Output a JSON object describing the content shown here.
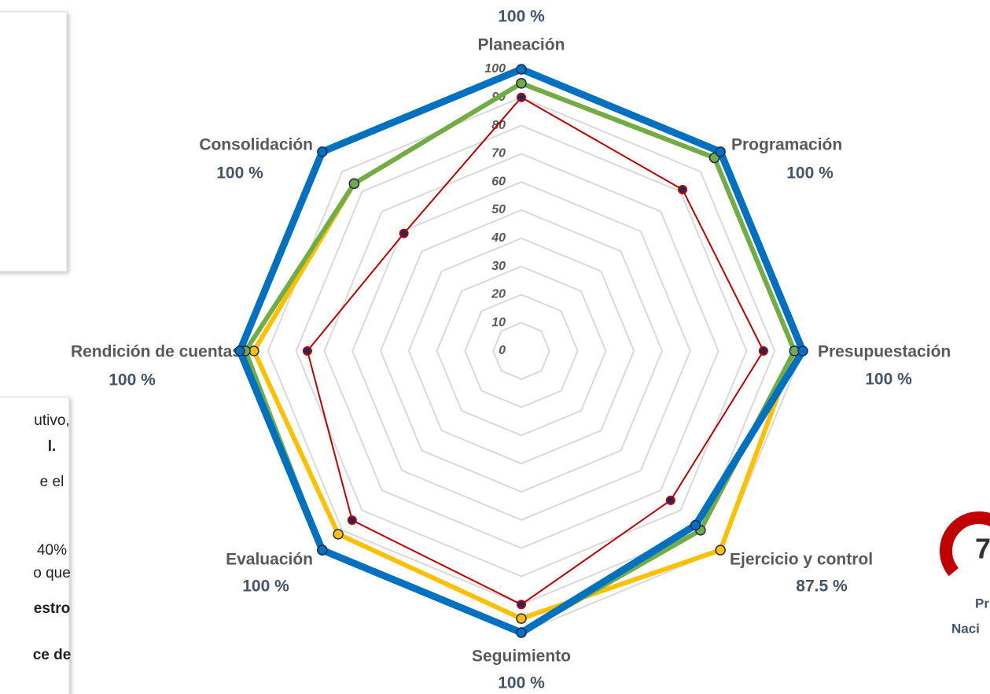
{
  "chart_data": {
    "type": "radar",
    "categories": [
      "Planeación",
      "Programación",
      "Presupuestación",
      "Ejercicio y control",
      "Seguimiento",
      "Evaluación",
      "Rendición de cuentas",
      "Consolidación"
    ],
    "ylim": [
      0,
      100
    ],
    "yticks": [
      0,
      10,
      20,
      30,
      40,
      50,
      60,
      70,
      80,
      90,
      100
    ],
    "grid": true,
    "series": [
      {
        "color": "#c00000",
        "values": [
          90,
          81,
          86,
          75,
          90,
          85,
          76,
          59
        ]
      },
      {
        "color": "#ffc000",
        "values": [
          95,
          97,
          97,
          100,
          95,
          92,
          95,
          84
        ]
      },
      {
        "color": "#70ad47",
        "values": [
          95,
          97,
          97,
          90,
          100,
          100,
          98,
          84
        ]
      },
      {
        "color": "#0070c0",
        "values": [
          100,
          100,
          100,
          87.5,
          100,
          100,
          100,
          100
        ],
        "value_labels": [
          "100 %",
          "100 %",
          "100 %",
          "87.5 %",
          "100 %",
          "100 %",
          "100 %",
          "100 %"
        ]
      }
    ]
  },
  "left_panel": {
    "lines": [
      "utivo,",
      "l.",
      "e   el",
      "40%",
      "o que",
      "estro",
      "ce de"
    ]
  },
  "right_panel": {
    "donut_value": "7",
    "caption": [
      "Pr",
      "Naci"
    ]
  }
}
